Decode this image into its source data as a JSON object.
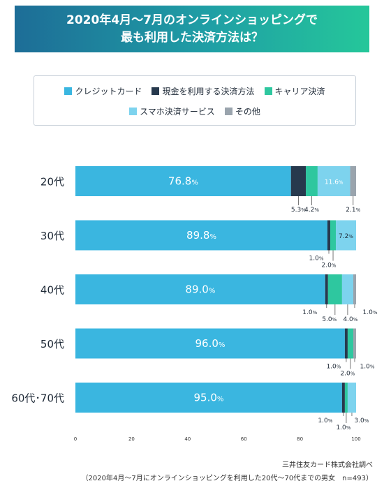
{
  "title": {
    "line1": "2020年4月〜7月のオンラインショッピングで",
    "line2": "最も利用した決済方法は？"
  },
  "chart_data": {
    "type": "bar",
    "orientation": "horizontal",
    "stacked": true,
    "categories": [
      "20代",
      "30代",
      "40代",
      "50代",
      "60代･70代"
    ],
    "series": [
      {
        "name": "クレジットカード",
        "color": "#3ab6e0",
        "values": [
          76.8,
          89.8,
          89.0,
          96.0,
          95.0
        ]
      },
      {
        "name": "現金を利用する決済方法",
        "color": "#27394d",
        "values": [
          5.3,
          1.0,
          1.0,
          1.0,
          1.0
        ]
      },
      {
        "name": "キャリア決済",
        "color": "#2ec79f",
        "values": [
          4.2,
          2.0,
          5.0,
          2.0,
          1.0
        ]
      },
      {
        "name": "スマホ決済サービス",
        "color": "#7dd3ee",
        "values": [
          11.6,
          7.2,
          4.0,
          0,
          3.0
        ]
      },
      {
        "name": "その他",
        "color": "#9aa4ad",
        "values": [
          2.1,
          0,
          1.0,
          1.0,
          0
        ]
      }
    ],
    "data_labels": [
      [
        "76.8%",
        "5.3%",
        "4.2%",
        "11.6%",
        "2.1%"
      ],
      [
        "89.8%",
        "1.0%",
        "2.0%",
        "7.2%",
        ""
      ],
      [
        "89.0%",
        "1.0%",
        "5.0%",
        "4.0%",
        "1.0%"
      ],
      [
        "96.0%",
        "1.0%",
        "2.0%",
        "",
        "1.0%"
      ],
      [
        "95.0%",
        "1.0%",
        "1.0%",
        "3.0%",
        ""
      ]
    ],
    "x_ticks": [
      "0",
      "20",
      "40",
      "60",
      "80",
      "100"
    ],
    "xlim": [
      0,
      100
    ],
    "grid": false,
    "legend_position": "top"
  },
  "footer": {
    "source": "三井住友カード株式会社調べ",
    "note": "（2020年4月〜7月にオンラインショッピングを利用した20代〜70代までの男女　n=493）"
  }
}
